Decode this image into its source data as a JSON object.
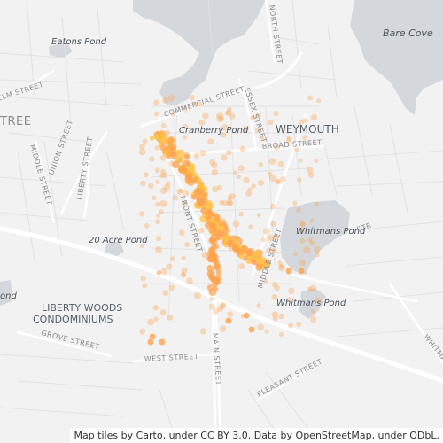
{
  "map": {
    "labels": {
      "eatons_pond": "Eatons Pond",
      "bare_cove": "Bare Cove",
      "cranberry_pond": "Cranberry Pond",
      "weymouth": "WEYMOUTH",
      "twenty_acre_pond": "20 Acre Pond",
      "whitmans_pond_1": "Whitmans Pond",
      "whitmans_pond_2": "Whitmans Pond",
      "liberty_woods_1": "LIBERTY WOODS",
      "liberty_woods_2": "CONDOMINIUMS",
      "street_commercial": "COMMERCIAL STREET",
      "street_essex": "ESSEX STREET",
      "street_broad": "BROAD STREET",
      "street_front": "FRONT STREET",
      "street_middle_r": "MIDDLE STREET",
      "street_middle_l": "MIDDLE STREET",
      "street_liberty": "LIBERTY STREET",
      "street_union": "UNION STREET",
      "street_elm": "ELM STREET",
      "street_grove": "GROVE STREET",
      "street_west": "WEST STREET",
      "street_main": "MAIN STREET",
      "street_pleasant": "PLEASANT STREET",
      "street_north": "NORTH STREET",
      "street_whitman": "WHITMAN",
      "street_partial_left": "TREE",
      "pond_partial_left_1": "ond",
      "pond_partial_left_2": "ond",
      "street_partial_bottom": "STR"
    },
    "colors": {
      "background": "#f2f2f2",
      "water": "#d4d8dc",
      "road": "#ffffff",
      "point_fill": "#ffa24d",
      "point_hot": "#ffc44a"
    },
    "attribution": "Map tiles by Carto, under CC BY 3.0. Data by OpenStreetMap, under ODbL."
  }
}
